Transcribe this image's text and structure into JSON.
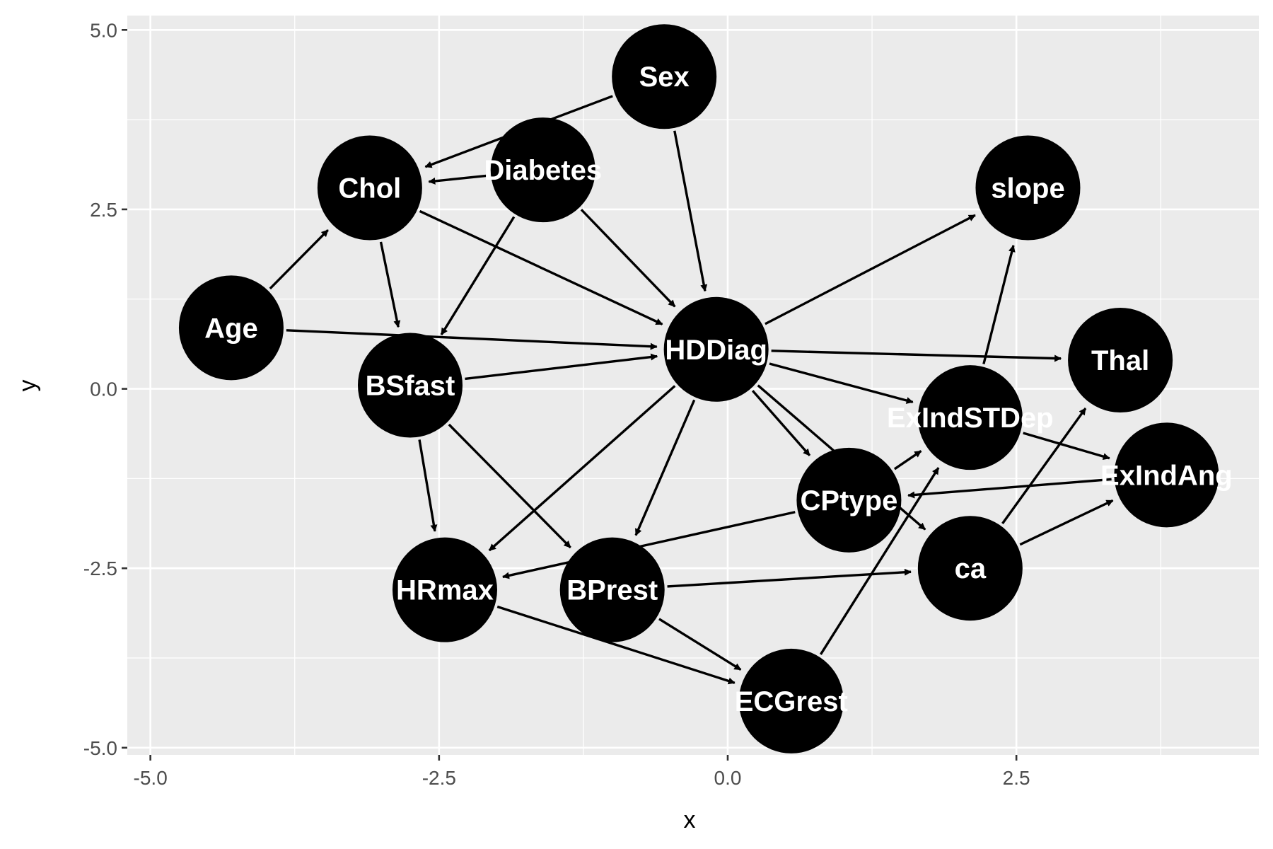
{
  "chart_data": {
    "type": "directed-graph",
    "xlabel": "x",
    "ylabel": "y",
    "xlim": [
      -5.2,
      4.6
    ],
    "ylim": [
      -5.1,
      5.2
    ],
    "x_ticks": [
      -5.0,
      -2.5,
      0.0,
      2.5
    ],
    "x_tick_labels": [
      "-5.0",
      "-2.5",
      "0.0",
      "2.5"
    ],
    "y_ticks": [
      -5.0,
      -2.5,
      0.0,
      2.5,
      5.0
    ],
    "y_tick_labels": [
      "-5.0",
      "-2.5",
      "0.0",
      "2.5",
      "5.0"
    ],
    "grid": true,
    "nodes": [
      {
        "id": "Sex",
        "x": -0.55,
        "y": 4.35
      },
      {
        "id": "Chol",
        "x": -3.1,
        "y": 2.8
      },
      {
        "id": "Diabetes",
        "x": -1.6,
        "y": 3.05
      },
      {
        "id": "slope",
        "x": 2.6,
        "y": 2.8
      },
      {
        "id": "Age",
        "x": -4.3,
        "y": 0.85
      },
      {
        "id": "HDDiag",
        "x": -0.1,
        "y": 0.55
      },
      {
        "id": "Thal",
        "x": 3.4,
        "y": 0.4
      },
      {
        "id": "BSfast",
        "x": -2.75,
        "y": 0.05
      },
      {
        "id": "ExIndSTDep",
        "x": 2.1,
        "y": -0.4
      },
      {
        "id": "ExIndAng",
        "x": 3.8,
        "y": -1.2
      },
      {
        "id": "CPtype",
        "x": 1.05,
        "y": -1.55
      },
      {
        "id": "HRmax",
        "x": -2.45,
        "y": -2.8
      },
      {
        "id": "BPrest",
        "x": -1.0,
        "y": -2.8
      },
      {
        "id": "ca",
        "x": 2.1,
        "y": -2.5
      },
      {
        "id": "ECGrest",
        "x": 0.55,
        "y": -4.35
      }
    ],
    "edges": [
      [
        "Sex",
        "Chol"
      ],
      [
        "Sex",
        "HDDiag"
      ],
      [
        "Diabetes",
        "Chol"
      ],
      [
        "Diabetes",
        "HDDiag"
      ],
      [
        "Diabetes",
        "BSfast"
      ],
      [
        "Chol",
        "HDDiag"
      ],
      [
        "Chol",
        "BSfast"
      ],
      [
        "Age",
        "Chol"
      ],
      [
        "Age",
        "HDDiag"
      ],
      [
        "BSfast",
        "HDDiag"
      ],
      [
        "BSfast",
        "HRmax"
      ],
      [
        "BSfast",
        "BPrest"
      ],
      [
        "HDDiag",
        "slope"
      ],
      [
        "HDDiag",
        "Thal"
      ],
      [
        "HDDiag",
        "ExIndSTDep"
      ],
      [
        "HDDiag",
        "CPtype"
      ],
      [
        "HDDiag",
        "ca"
      ],
      [
        "HDDiag",
        "HRmax"
      ],
      [
        "HDDiag",
        "BPrest"
      ],
      [
        "ExIndSTDep",
        "slope"
      ],
      [
        "ExIndSTDep",
        "ExIndAng"
      ],
      [
        "CPtype",
        "ExIndSTDep"
      ],
      [
        "CPtype",
        "HRmax"
      ],
      [
        "ExIndAng",
        "CPtype"
      ],
      [
        "ca",
        "Thal"
      ],
      [
        "ca",
        "ExIndAng"
      ],
      [
        "BPrest",
        "ca"
      ],
      [
        "BPrest",
        "ECGrest"
      ],
      [
        "HRmax",
        "ECGrest"
      ],
      [
        "ECGrest",
        "ExIndSTDep"
      ]
    ]
  }
}
